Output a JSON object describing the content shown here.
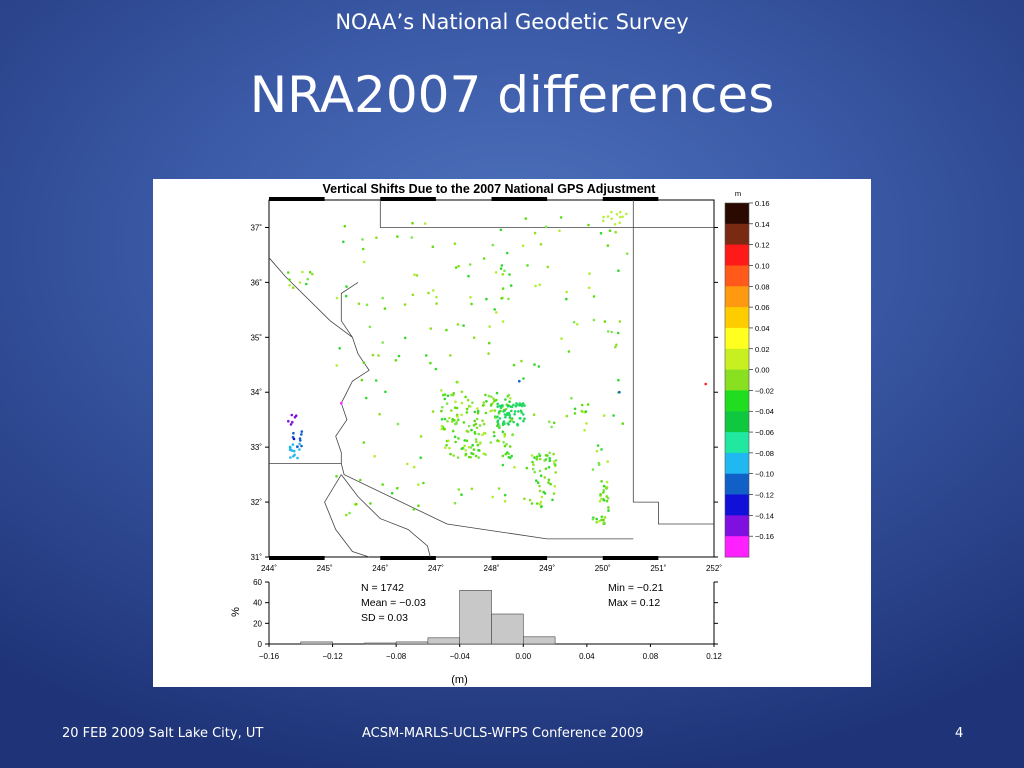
{
  "slide": {
    "header": "NOAA’s National Geodetic Survey",
    "title": "NRA2007 differences",
    "footer_left": "20 FEB 2009   Salt Lake City, UT",
    "footer_center": "ACSM-MARLS-UCLS-WFPS Conference 2009",
    "page_number": "4"
  },
  "chart_data": [
    {
      "type": "scatter",
      "title": "Vertical Shifts Due to the 2007 National GPS Adjustment",
      "xlim": [
        244,
        252
      ],
      "ylim": [
        31,
        37.5
      ],
      "x_ticks": [
        "244˚",
        "245˚",
        "246˚",
        "247˚",
        "248˚",
        "249˚",
        "250˚",
        "251˚",
        "252˚"
      ],
      "y_ticks": [
        "31˚",
        "32˚",
        "33˚",
        "34˚",
        "35˚",
        "36˚",
        "37˚"
      ],
      "colorbar": {
        "unit": "m",
        "labels": [
          "0.16",
          "0.14",
          "0.12",
          "0.10",
          "0.08",
          "0.06",
          "0.04",
          "0.02",
          "0.00",
          "−0.02",
          "−0.04",
          "−0.06",
          "−0.08",
          "−0.10",
          "−0.12",
          "−0.14",
          "−0.16"
        ],
        "colors": [
          "#2a0a00",
          "#7a2a12",
          "#ff1a1a",
          "#ff5a1a",
          "#ff9a10",
          "#ffcc00",
          "#ffff20",
          "#c8f020",
          "#88e020",
          "#20dd20",
          "#10c840",
          "#20e8a0",
          "#20b8f0",
          "#1060c8",
          "#1010d8",
          "#8010e0",
          "#ff20ff"
        ]
      }
    },
    {
      "type": "bar",
      "title": "",
      "xlabel": "(m)",
      "ylabel": "%",
      "xlim": [
        -0.16,
        0.12
      ],
      "ylim": [
        0,
        60
      ],
      "x_ticks": [
        "−0.16",
        "−0.12",
        "−0.08",
        "−0.04",
        "0.00",
        "0.04",
        "0.08",
        "0.12"
      ],
      "y_ticks": [
        "0",
        "20",
        "40",
        "60"
      ],
      "bins": [
        {
          "x0": -0.14,
          "x1": -0.12,
          "value": 2
        },
        {
          "x0": -0.1,
          "x1": -0.08,
          "value": 1
        },
        {
          "x0": -0.08,
          "x1": -0.06,
          "value": 2
        },
        {
          "x0": -0.06,
          "x1": -0.04,
          "value": 6
        },
        {
          "x0": -0.04,
          "x1": -0.02,
          "value": 52
        },
        {
          "x0": -0.02,
          "x1": 0.0,
          "value": 29
        },
        {
          "x0": 0.0,
          "x1": 0.02,
          "value": 7
        }
      ],
      "stats_left": [
        "N =  1742",
        "Mean = −0.03",
        "SD = 0.03"
      ],
      "stats_right": [
        "Min = −0.21",
        "Max = 0.12"
      ]
    }
  ]
}
